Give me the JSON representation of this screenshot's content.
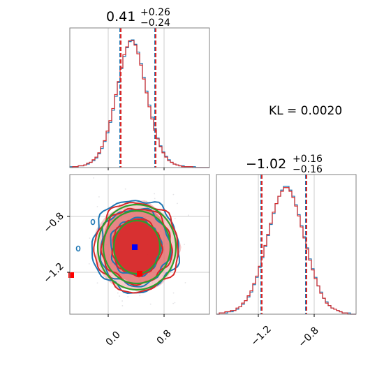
{
  "chart_data": {
    "type": "corner",
    "annotation": "KL = 0.0020",
    "colors": {
      "blue": "#1f77b4",
      "red": "#d62728",
      "green": "#2ca02c",
      "grid": "#cccccc"
    },
    "params": [
      {
        "title_main": "0.41",
        "title_plus": "+0.26",
        "title_minus": "−0.24",
        "range": [
          -0.55,
          1.45
        ],
        "quantiles": [
          0.17,
          0.41,
          0.67
        ],
        "grid_lines": [
          0.0,
          0.8
        ]
      },
      {
        "title_main": "−1.02",
        "title_plus": "+0.16",
        "title_minus": "−0.16",
        "range": [
          -1.5,
          -0.5
        ],
        "quantiles": [
          -1.18,
          -1.02,
          -0.86
        ],
        "grid_lines": [
          -1.2,
          -0.8
        ]
      }
    ],
    "marginal_x": {
      "bin_width": 0.04,
      "blue_counts": [
        1,
        1,
        1,
        2,
        2,
        3,
        4,
        6,
        8,
        11,
        16,
        22,
        30,
        40,
        52,
        66,
        82,
        98,
        114,
        128,
        138,
        145,
        147,
        142,
        133,
        120,
        104,
        88,
        72,
        58,
        45,
        34,
        25,
        18,
        13,
        9,
        6,
        4,
        3,
        2,
        2,
        1,
        1,
        1,
        1,
        0,
        0,
        0,
        0,
        0
      ],
      "red_counts": [
        0,
        1,
        1,
        2,
        2,
        3,
        5,
        6,
        9,
        12,
        17,
        24,
        31,
        42,
        54,
        68,
        84,
        99,
        115,
        130,
        139,
        146,
        146,
        141,
        131,
        118,
        102,
        86,
        70,
        56,
        43,
        33,
        24,
        17,
        12,
        8,
        6,
        4,
        3,
        2,
        1,
        1,
        1,
        1,
        0,
        0,
        0,
        0,
        0,
        0
      ]
    },
    "marginal_y": {
      "bin_width": 0.02,
      "y_range": [
        -1.5,
        -0.5
      ],
      "blue_counts": [
        0,
        1,
        1,
        1,
        2,
        2,
        3,
        4,
        6,
        8,
        11,
        14,
        18,
        24,
        30,
        38,
        46,
        55,
        64,
        73,
        82,
        90,
        96,
        101,
        104,
        104,
        101,
        96,
        89,
        81,
        72,
        63,
        54,
        45,
        37,
        30,
        23,
        18,
        13,
        10,
        7,
        5,
        4,
        3,
        2,
        1,
        1,
        1,
        0,
        0
      ],
      "red_counts": [
        0,
        1,
        1,
        2,
        2,
        3,
        3,
        5,
        6,
        9,
        11,
        15,
        19,
        25,
        31,
        39,
        47,
        56,
        65,
        74,
        83,
        90,
        96,
        100,
        103,
        103,
        100,
        95,
        88,
        80,
        71,
        62,
        53,
        44,
        36,
        29,
        23,
        17,
        13,
        9,
        7,
        5,
        4,
        3,
        2,
        1,
        1,
        0,
        0,
        0
      ]
    },
    "scatter2d": {
      "blue_contours": [
        {
          "cx": 0.39,
          "cy": -1.02,
          "rx": 0.36,
          "ry": 0.205
        },
        {
          "cx": 0.38,
          "cy": -1.02,
          "rx": 0.5,
          "ry": 0.275
        },
        {
          "cx": 0.39,
          "cy": -1.01,
          "rx": 0.62,
          "ry": 0.33
        }
      ],
      "red_contours": [
        {
          "cx": 0.41,
          "cy": -1.02,
          "rx": 0.35,
          "ry": 0.2
        },
        {
          "cx": 0.41,
          "cy": -1.01,
          "rx": 0.5,
          "ry": 0.27
        },
        {
          "cx": 0.41,
          "cy": -1.02,
          "rx": 0.6,
          "ry": 0.32
        }
      ],
      "green_contours": [
        {
          "cx": 0.41,
          "cy": -1.02,
          "rx": 0.33,
          "ry": 0.19
        },
        {
          "cx": 0.41,
          "cy": -1.02,
          "rx": 0.48,
          "ry": 0.26
        },
        {
          "cx": 0.41,
          "cy": -1.02,
          "rx": 0.56,
          "ry": 0.305
        }
      ],
      "blue_marker": [
        0.38,
        -1.02
      ],
      "red_marker": [
        0.45,
        -1.21
      ],
      "red_edge_marker": [
        -0.53,
        -1.22
      ],
      "blue_outliers": [
        [
          -0.22,
          -0.84
        ],
        [
          -0.43,
          -1.03
        ]
      ]
    }
  }
}
